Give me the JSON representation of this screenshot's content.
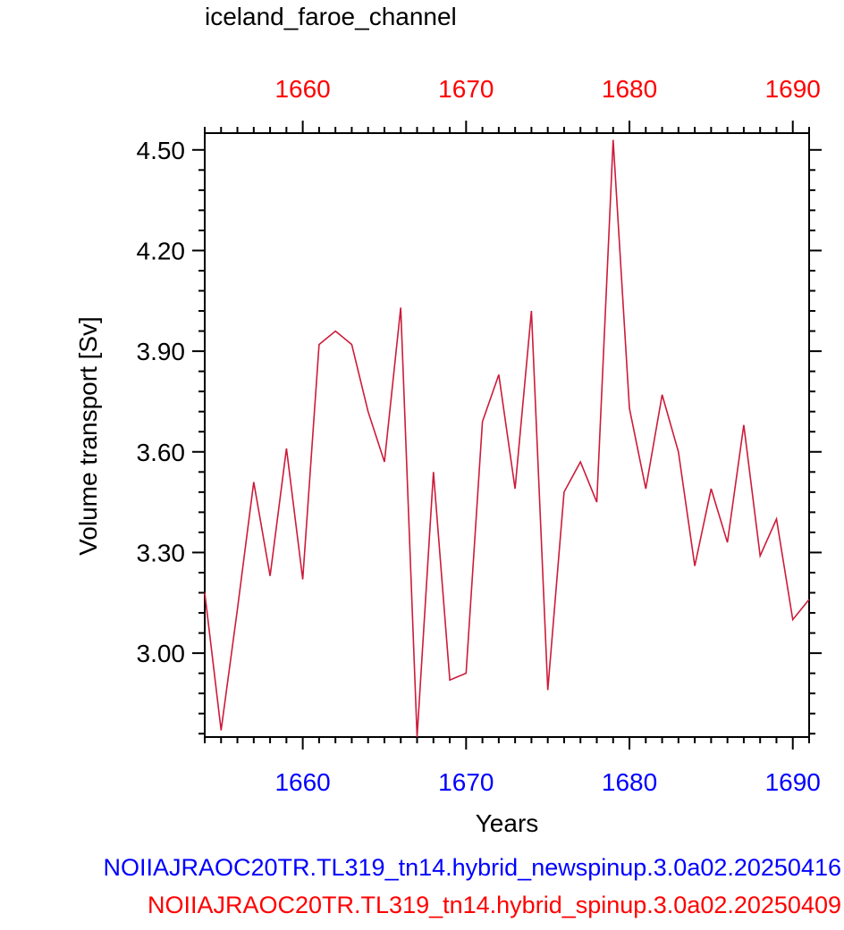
{
  "chart_data": {
    "type": "line",
    "title": "iceland_faroe_channel",
    "xlabel": "Years",
    "ylabel": "Volume transport [Sv]",
    "xlim": [
      1654,
      1691
    ],
    "ylim": [
      2.75,
      4.55
    ],
    "x_ticks_major": [
      1660,
      1670,
      1680,
      1690
    ],
    "x_tick_labels": [
      "1660",
      "1670",
      "1680",
      "1690"
    ],
    "y_ticks_major": [
      3.0,
      3.3,
      3.6,
      3.9,
      4.2,
      4.5
    ],
    "y_tick_labels": [
      "3.00",
      "3.30",
      "3.60",
      "3.90",
      "4.20",
      "4.50"
    ],
    "grid": false,
    "colors": {
      "line": "#cc1b3a",
      "bottom_axis_labels": "#0000ff",
      "top_axis_labels": "#ff0000",
      "frame": "#000000"
    },
    "series": [
      {
        "name": "NOIIAJRAOC20TR.TL319_tn14.hybrid_newspinup.3.0a02.20250416",
        "color": "#0000ff",
        "x": [],
        "values": []
      },
      {
        "name": "NOIIAJRAOC20TR.TL319_tn14.hybrid_spinup.3.0a02.20250409",
        "color": "#cc1b3a",
        "x": [
          1654,
          1655,
          1656,
          1657,
          1658,
          1659,
          1660,
          1661,
          1662,
          1663,
          1664,
          1665,
          1666,
          1667,
          1668,
          1669,
          1670,
          1671,
          1672,
          1673,
          1674,
          1675,
          1676,
          1677,
          1678,
          1679,
          1680,
          1681,
          1682,
          1683,
          1684,
          1685,
          1686,
          1687,
          1688,
          1689,
          1690,
          1691
        ],
        "values": [
          3.18,
          2.77,
          3.13,
          3.51,
          3.23,
          3.61,
          3.22,
          3.92,
          3.96,
          3.92,
          3.72,
          3.57,
          4.03,
          2.75,
          3.54,
          2.92,
          2.94,
          3.69,
          3.83,
          3.49,
          4.02,
          2.89,
          3.48,
          3.57,
          3.45,
          4.53,
          3.73,
          3.49,
          3.77,
          3.6,
          3.26,
          3.49,
          3.33,
          3.68,
          3.29,
          3.4,
          3.1,
          3.16
        ]
      }
    ]
  }
}
